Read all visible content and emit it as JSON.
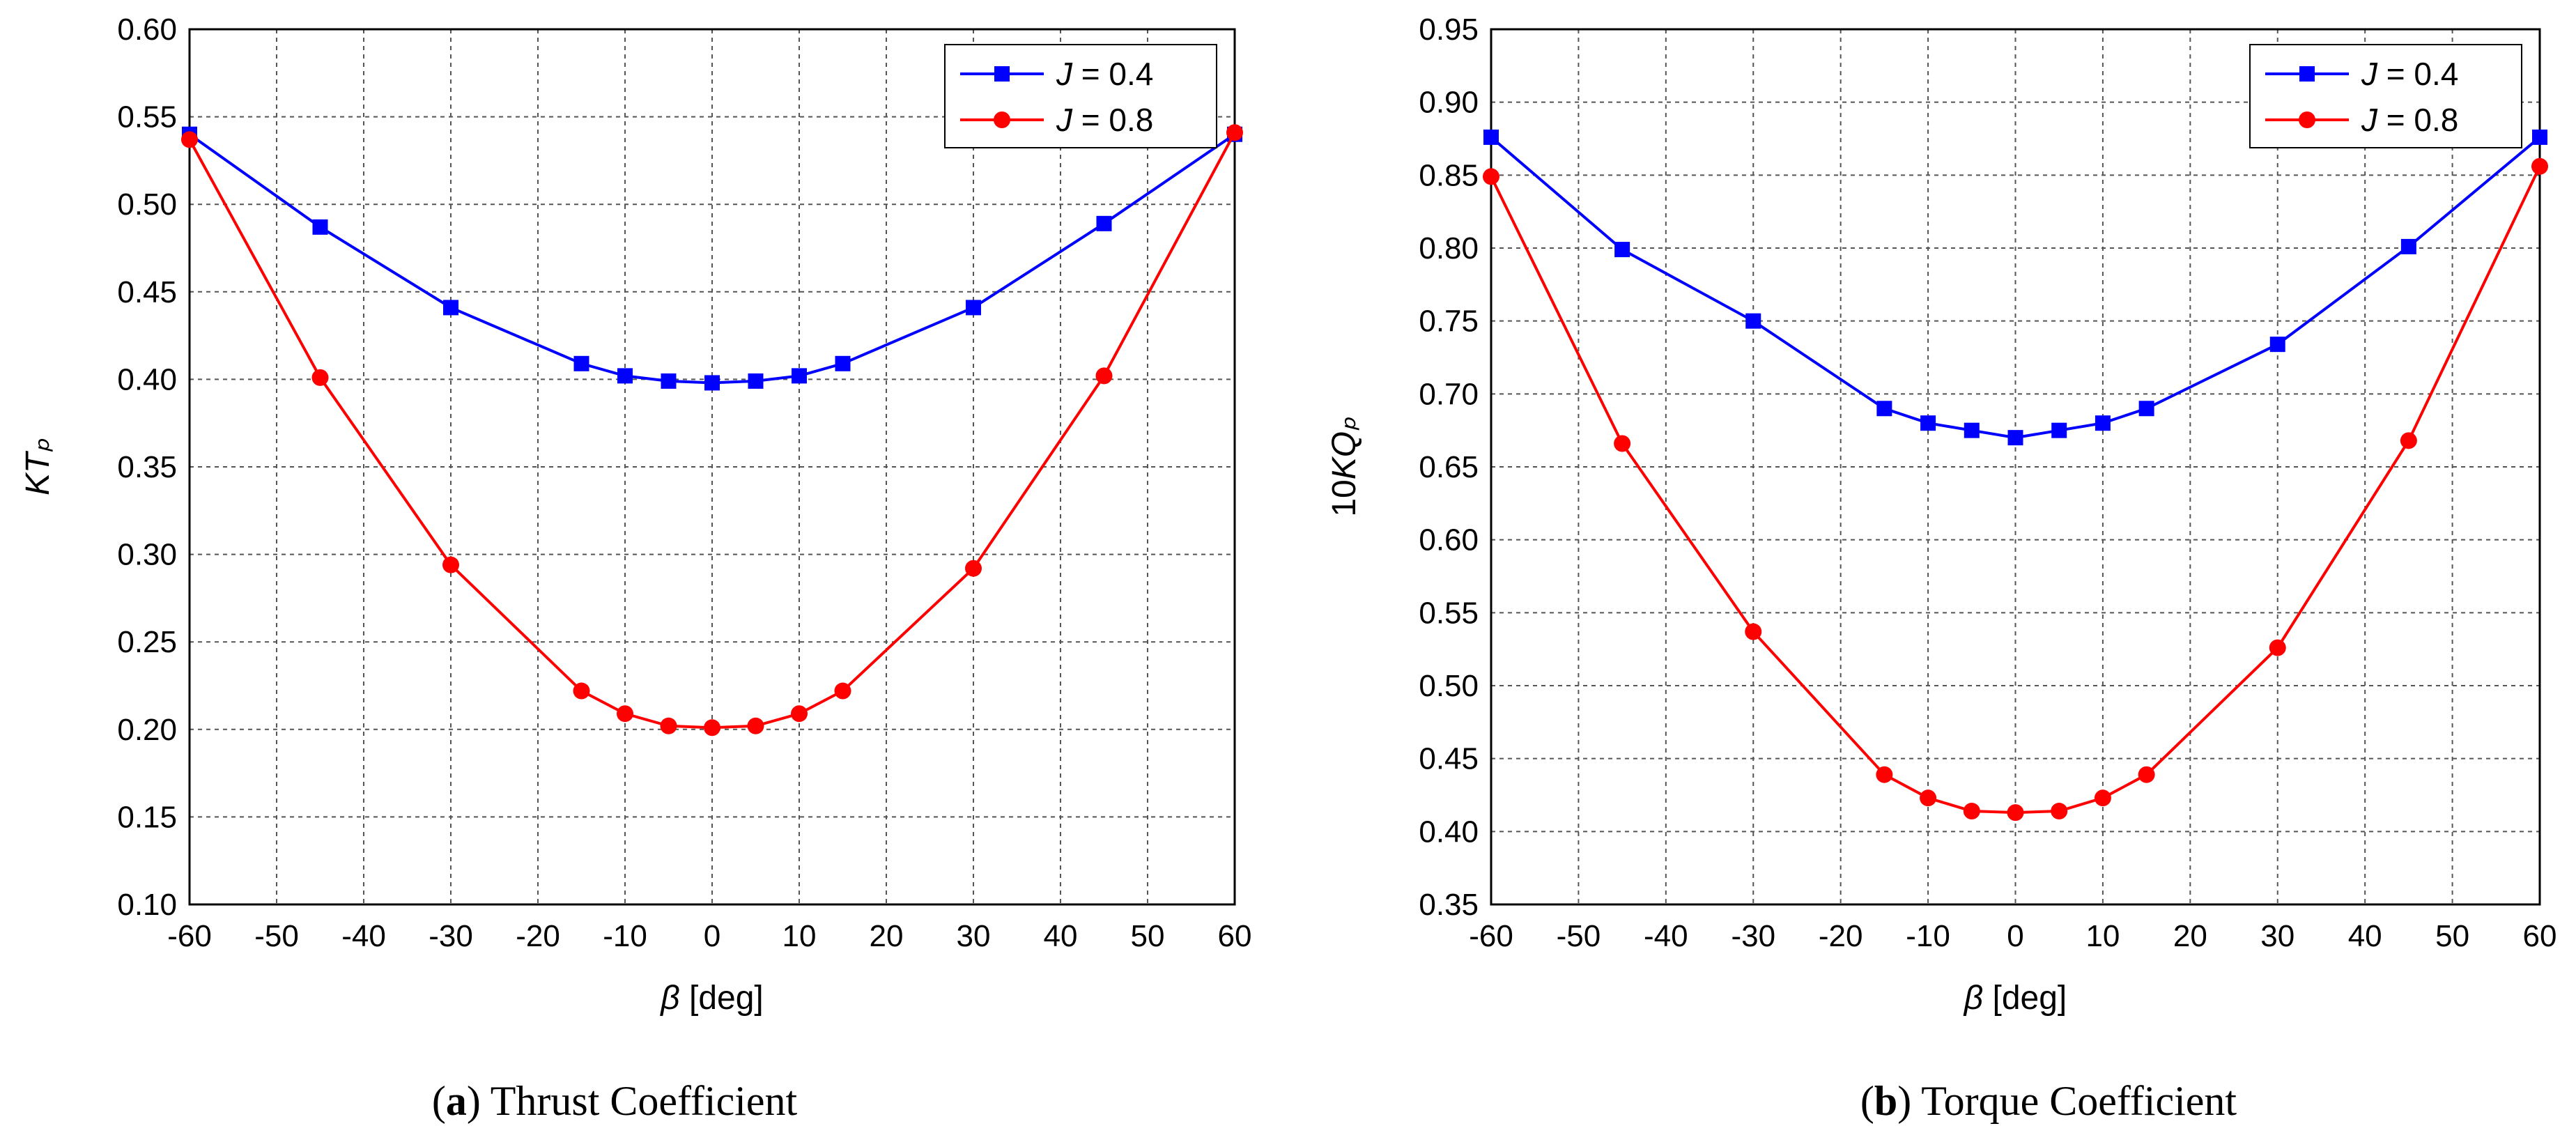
{
  "chart_data": [
    {
      "type": "line",
      "panel": "a",
      "caption_letter": "a",
      "caption_text": "Thrust Coefficient",
      "xlabel": "β [deg]",
      "ylabel": "KTₚ",
      "xlim": [
        -60,
        60
      ],
      "ylim": [
        0.1,
        0.6
      ],
      "xticks": [
        "-60",
        "-50",
        "-40",
        "-30",
        "-20",
        "-10",
        "0",
        "10",
        "20",
        "30",
        "40",
        "50",
        "60"
      ],
      "yticks": [
        "0.10",
        "0.15",
        "0.20",
        "0.25",
        "0.30",
        "0.35",
        "0.40",
        "0.45",
        "0.50",
        "0.55",
        "0.60"
      ],
      "legend_position": "top-right",
      "grid": true,
      "series": [
        {
          "name": "J = 0.4",
          "legend_italic": "J",
          "legend_rest": " = 0.4",
          "color": "#0000ff",
          "marker": "square",
          "x": [
            -60,
            -45,
            -30,
            -15,
            -10,
            -5,
            0,
            5,
            10,
            15,
            30,
            45,
            60
          ],
          "y": [
            0.54,
            0.487,
            0.441,
            0.409,
            0.402,
            0.399,
            0.398,
            0.399,
            0.402,
            0.409,
            0.441,
            0.489,
            0.54
          ]
        },
        {
          "name": "J = 0.8",
          "legend_italic": "J",
          "legend_rest": " = 0.8",
          "color": "#ff0000",
          "marker": "circle",
          "x": [
            -60,
            -45,
            -30,
            -15,
            -10,
            -5,
            0,
            5,
            10,
            15,
            30,
            45,
            60
          ],
          "y": [
            0.537,
            0.401,
            0.294,
            0.222,
            0.209,
            0.202,
            0.201,
            0.202,
            0.209,
            0.222,
            0.292,
            0.402,
            0.541
          ]
        }
      ]
    },
    {
      "type": "line",
      "panel": "b",
      "caption_letter": "b",
      "caption_text": "Torque Coefficient",
      "xlabel": "β [deg]",
      "ylabel": "10KQₚ",
      "xlim": [
        -60,
        60
      ],
      "ylim": [
        0.35,
        0.95
      ],
      "xticks": [
        "-60",
        "-50",
        "-40",
        "-30",
        "-20",
        "-10",
        "0",
        "10",
        "20",
        "30",
        "40",
        "50",
        "60"
      ],
      "yticks": [
        "0.35",
        "0.40",
        "0.45",
        "0.50",
        "0.55",
        "0.60",
        "0.65",
        "0.70",
        "0.75",
        "0.80",
        "0.85",
        "0.90",
        "0.95"
      ],
      "legend_position": "top-right",
      "grid": true,
      "series": [
        {
          "name": "J = 0.4",
          "legend_italic": "J",
          "legend_rest": " = 0.4",
          "color": "#0000ff",
          "marker": "square",
          "x": [
            -60,
            -45,
            -30,
            -15,
            -10,
            -5,
            0,
            5,
            10,
            15,
            30,
            45,
            60
          ],
          "y": [
            0.876,
            0.799,
            0.75,
            0.69,
            0.68,
            0.675,
            0.67,
            0.675,
            0.68,
            0.69,
            0.734,
            0.801,
            0.876
          ]
        },
        {
          "name": "J = 0.8",
          "legend_italic": "J",
          "legend_rest": " = 0.8",
          "color": "#ff0000",
          "marker": "circle",
          "x": [
            -60,
            -45,
            -30,
            -15,
            -10,
            -5,
            0,
            5,
            10,
            15,
            30,
            45,
            60
          ],
          "y": [
            0.849,
            0.666,
            0.537,
            0.439,
            0.423,
            0.414,
            0.413,
            0.414,
            0.423,
            0.439,
            0.526,
            0.668,
            0.856
          ]
        }
      ]
    }
  ]
}
